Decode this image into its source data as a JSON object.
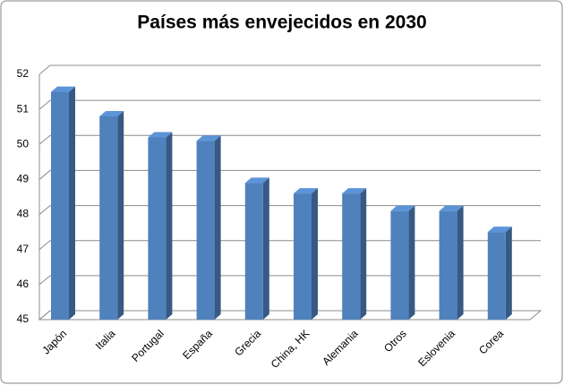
{
  "chart_data": {
    "type": "bar3d",
    "title": "Países más envejecidos en 2030",
    "categories": [
      "Japón",
      "Italia",
      "Portugal",
      "España",
      "Grecia",
      "China, HK",
      "Alemania",
      "Otros",
      "Eslovenia",
      "Corea"
    ],
    "values": [
      51.5,
      50.8,
      50.2,
      50.1,
      48.9,
      48.6,
      48.6,
      48.1,
      48.1,
      47.5
    ],
    "color": "#4f81bd",
    "ylim": [
      45,
      52
    ],
    "yticks": [
      45,
      46,
      47,
      48,
      49,
      50,
      51,
      52
    ],
    "grid": true
  }
}
